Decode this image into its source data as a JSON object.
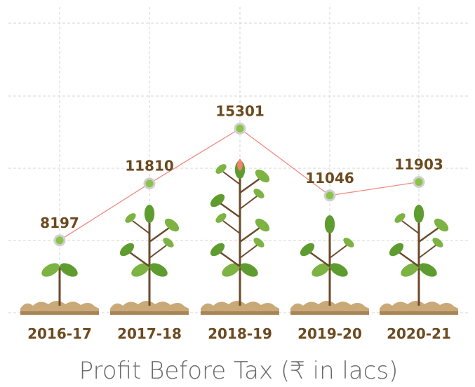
{
  "chart_data": {
    "type": "line",
    "title": "Profit Before Tax (₹ in lacs)",
    "categories": [
      "2016-17",
      "2017-18",
      "2018-19",
      "2019-20",
      "2020-21"
    ],
    "series": [
      {
        "name": "Profit Before Tax",
        "color": "#f08a80",
        "values": [
          8197,
          11810,
          15301,
          11046,
          11903
        ]
      }
    ],
    "ylim": [
      3600,
      22000
    ]
  }
}
